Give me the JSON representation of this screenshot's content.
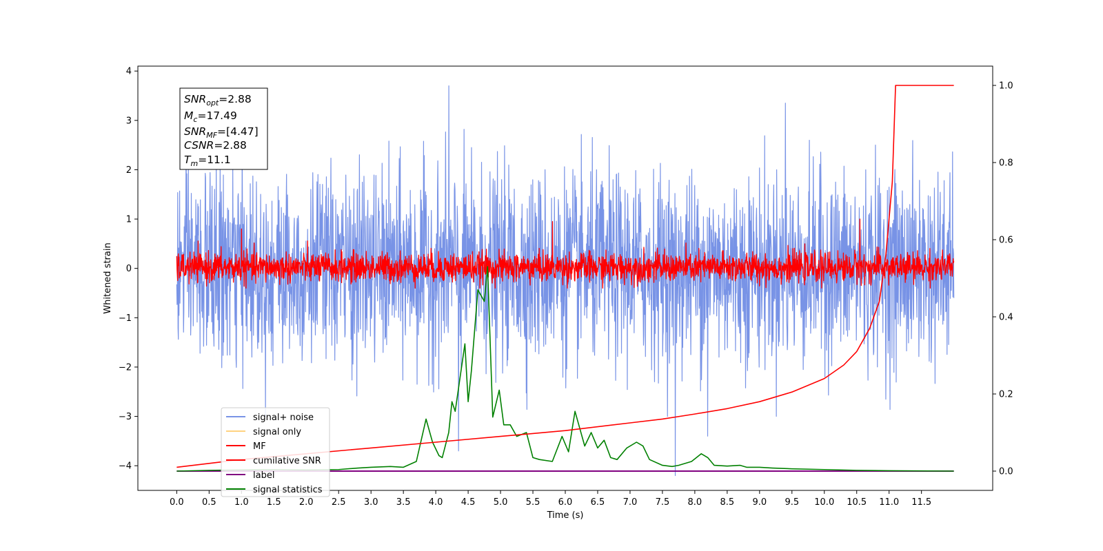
{
  "chart_data": {
    "type": "line",
    "xlabel": "Time (s)",
    "ylabel": "Whitened strain",
    "xlim": [
      -0.6,
      12.6
    ],
    "ylim_left": [
      -4.5,
      4.1
    ],
    "ylim_right": [
      -0.05,
      1.05
    ],
    "x_ticks": [
      0.0,
      0.5,
      1.0,
      1.5,
      2.0,
      2.5,
      3.0,
      3.5,
      4.0,
      4.5,
      5.0,
      5.5,
      6.0,
      6.5,
      7.0,
      7.5,
      8.0,
      8.5,
      9.0,
      9.5,
      10.0,
      10.5,
      11.0,
      11.5
    ],
    "x_tick_labels": [
      "0.0",
      "0.5",
      "1.0",
      "1.5",
      "2.0",
      "2.5",
      "3.0",
      "3.5",
      "4.0",
      "4.5",
      "5.0",
      "5.5",
      "6.0",
      "6.5",
      "7.0",
      "7.5",
      "8.0",
      "8.5",
      "9.0",
      "9.5",
      "10.0",
      "10.5",
      "11.0",
      "11.5"
    ],
    "y_left_ticks": [
      4,
      3,
      2,
      1,
      0,
      -1,
      -2,
      -3,
      -4
    ],
    "y_left_tick_labels": [
      "4",
      "3",
      "2",
      "1",
      "0",
      "−1",
      "−2",
      "−3",
      "−4"
    ],
    "y_right_ticks": [
      1.0,
      0.8,
      0.6,
      0.4,
      0.2,
      0.0
    ],
    "y_right_tick_labels": [
      "1.0",
      "0.8",
      "0.6",
      "0.4",
      "0.2",
      "0.0"
    ],
    "info_box": {
      "snr_opt": "2.88",
      "mc": "17.49",
      "snr_mf": "[4.47]",
      "csnr": "2.88",
      "tm": "11.1"
    },
    "legend": {
      "placement": "lower-left",
      "entries": [
        {
          "key": "signal_noise",
          "label": "signal+ noise",
          "color": "#7893e6"
        },
        {
          "key": "signal_only",
          "label": "signal only",
          "color": "#ffd27f"
        },
        {
          "key": "mf",
          "label": "MF",
          "color": "#ff0000"
        },
        {
          "key": "cumulative_snr",
          "label": "cumilative SNR",
          "color": "#ff0000"
        },
        {
          "key": "label",
          "label": "label",
          "color": "#800080"
        },
        {
          "key": "signal_statistics",
          "label": "signal statistics",
          "color": "#008000"
        }
      ]
    },
    "series": [
      {
        "name": "signal+ noise",
        "axis": "left",
        "style": "dense noise, approx std 0.95, range about -4.2 to 3.7",
        "notable_peaks": [
          {
            "x": 4.2,
            "y": 3.7
          },
          {
            "x": 4.35,
            "y": -3.7
          },
          {
            "x": 7.7,
            "y": -4.2
          },
          {
            "x": 8.2,
            "y": -3.4
          },
          {
            "x": 9.4,
            "y": 3.35
          }
        ]
      },
      {
        "name": "MF",
        "axis": "left",
        "style": "dense noise, approx std 0.15, range about -0.4 to 0.95",
        "notable_peaks": [
          {
            "x": 1.0,
            "y": 0.8
          },
          {
            "x": 5.8,
            "y": 0.95
          },
          {
            "x": 10.55,
            "y": 1.0
          }
        ]
      },
      {
        "name": "cumilative SNR",
        "axis": "right",
        "x": [
          0.0,
          0.5,
          1.0,
          2.0,
          3.0,
          4.0,
          5.0,
          6.0,
          7.0,
          7.5,
          8.0,
          8.5,
          9.0,
          9.5,
          10.0,
          10.3,
          10.5,
          10.7,
          10.85,
          10.95,
          11.05,
          11.1,
          11.5,
          12.0
        ],
        "y": [
          0.01,
          0.02,
          0.03,
          0.045,
          0.06,
          0.075,
          0.09,
          0.105,
          0.125,
          0.135,
          0.148,
          0.162,
          0.18,
          0.205,
          0.24,
          0.275,
          0.31,
          0.37,
          0.44,
          0.56,
          0.75,
          1.0,
          1.0,
          1.0
        ]
      },
      {
        "name": "label",
        "axis": "right",
        "x": [
          0.0,
          12.0
        ],
        "y": [
          0.0,
          0.0
        ]
      },
      {
        "name": "signal statistics",
        "axis": "right",
        "x": [
          0.0,
          0.5,
          1.0,
          1.5,
          2.0,
          2.5,
          2.8,
          3.0,
          3.3,
          3.5,
          3.7,
          3.85,
          3.95,
          4.05,
          4.1,
          4.2,
          4.25,
          4.3,
          4.45,
          4.5,
          4.55,
          4.65,
          4.75,
          4.8,
          4.88,
          4.98,
          5.05,
          5.15,
          5.25,
          5.4,
          5.5,
          5.6,
          5.8,
          5.95,
          6.05,
          6.15,
          6.3,
          6.4,
          6.5,
          6.6,
          6.7,
          6.8,
          6.95,
          7.1,
          7.2,
          7.3,
          7.5,
          7.65,
          7.75,
          7.95,
          8.1,
          8.2,
          8.3,
          8.5,
          8.7,
          8.8,
          9.0,
          9.2,
          9.5,
          10.0,
          10.5,
          11.0,
          12.0
        ],
        "y": [
          0.0,
          0.002,
          0.003,
          0.004,
          0.003,
          0.004,
          0.008,
          0.01,
          0.012,
          0.01,
          0.025,
          0.135,
          0.075,
          0.04,
          0.035,
          0.1,
          0.18,
          0.155,
          0.33,
          0.18,
          0.26,
          0.47,
          0.44,
          0.53,
          0.14,
          0.21,
          0.12,
          0.12,
          0.09,
          0.1,
          0.035,
          0.03,
          0.025,
          0.09,
          0.05,
          0.155,
          0.065,
          0.1,
          0.06,
          0.08,
          0.035,
          0.03,
          0.06,
          0.075,
          0.065,
          0.03,
          0.015,
          0.012,
          0.015,
          0.025,
          0.045,
          0.035,
          0.015,
          0.013,
          0.015,
          0.01,
          0.01,
          0.008,
          0.006,
          0.004,
          0.002,
          0.001,
          0.0
        ]
      }
    ]
  }
}
